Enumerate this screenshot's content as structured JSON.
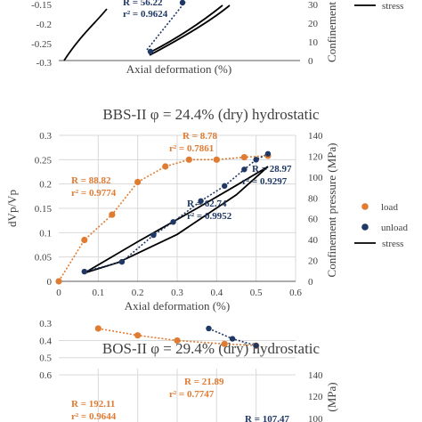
{
  "colors": {
    "load": "#E07B32",
    "unload": "#1F3864",
    "stress": "#000000",
    "axis": "#595959",
    "grid": "#D9D9D9"
  },
  "chart_data": [
    {
      "type": "scatter",
      "title": "",
      "xlabel": "Axial deformation (%)",
      "ylabel": "",
      "ylabel2": "Confinement",
      "ylim": [
        -0.3,
        -0.1
      ],
      "y_ticks": [
        "-0.15",
        "-0.2",
        "-0.25",
        "-0.3"
      ],
      "y2_ticks": [
        "30",
        "20",
        "10",
        "0"
      ],
      "series": [
        {
          "name": "unload",
          "x": [
            0.395,
            0.56
          ],
          "y": [
            -0.27,
            -0.14
          ]
        }
      ],
      "annotations": [
        {
          "text": "R = 56.22",
          "series": "unload"
        },
        {
          "text": "r² = 0.9624",
          "series": "unload"
        }
      ],
      "legend": [
        {
          "label": "stress"
        }
      ]
    },
    {
      "type": "scatter",
      "title": "BBS-II φ = 24.4% (dry) hydrostatic",
      "xlabel": "Axial deformation (%)",
      "ylabel": "dVp/Vp",
      "ylabel2": "Confinement pressure (MPa)",
      "xlim": [
        0,
        0.6
      ],
      "ylim": [
        0,
        0.3
      ],
      "y2lim": [
        0,
        140
      ],
      "x_ticks": [
        "0",
        "0.1",
        "0.2",
        "0.3",
        "0.4",
        "0.5",
        "0.6"
      ],
      "y_ticks": [
        "0",
        "0.05",
        "0.1",
        "0.15",
        "0.2",
        "0.25",
        "0.3"
      ],
      "y2_ticks": [
        "0",
        "20",
        "40",
        "60",
        "80",
        "100",
        "120",
        "140"
      ],
      "grid": true,
      "series": [
        {
          "name": "load",
          "x": [
            0,
            0.065,
            0.135,
            0.2,
            0.27,
            0.33,
            0.4,
            0.47,
            0.53
          ],
          "y": [
            0,
            0.085,
            0.137,
            0.204,
            0.236,
            0.25,
            0.25,
            0.255,
            0.258
          ]
        },
        {
          "name": "unload",
          "x": [
            0.065,
            0.16,
            0.24,
            0.29,
            0.36,
            0.42,
            0.47,
            0.5,
            0.53
          ],
          "y": [
            0.02,
            0.04,
            0.095,
            0.122,
            0.165,
            0.196,
            0.23,
            0.25,
            0.262
          ]
        }
      ],
      "stress_loop": {
        "load_x": [
          0.065,
          0.2,
          0.35,
          0.45,
          0.53
        ],
        "load_y": [
          8,
          38,
          70,
          92,
          110
        ],
        "unload_x": [
          0.53,
          0.45,
          0.3,
          0.15,
          0.065
        ],
        "unload_y": [
          110,
          83,
          45,
          18,
          8
        ]
      },
      "annotations": [
        {
          "text": "R = 8.78",
          "color": "load"
        },
        {
          "text": "r² = 0.7861",
          "color": "load"
        },
        {
          "text": "R = 88.82",
          "color": "load"
        },
        {
          "text": "r² = 0.9774",
          "color": "load"
        },
        {
          "text": "R = 28.97",
          "color": "unload"
        },
        {
          "text": "r² = 0.9297",
          "color": "unload"
        },
        {
          "text": "R = 62.74",
          "color": "unload"
        },
        {
          "text": "r² = 0.9952",
          "color": "unload"
        }
      ],
      "legend": [
        {
          "label": "load"
        },
        {
          "label": "unload"
        },
        {
          "label": "stress"
        }
      ]
    },
    {
      "type": "scatter",
      "title": "BOS-II φ = 29.4% (dry) hydrostatic",
      "xlabel": "",
      "ylabel": "",
      "ylabel2": "(MPa)",
      "ylim": [
        0.3,
        0.6
      ],
      "y2lim": [
        100,
        140
      ],
      "y_ticks": [
        "0.6",
        "0.5",
        "0.4",
        "0.3"
      ],
      "y2_ticks": [
        "140",
        "120",
        "100"
      ],
      "series": [
        {
          "name": "load",
          "x": [
            0.1,
            0.2,
            0.3,
            0.42,
            0.5
          ],
          "y": [
            0.33,
            0.37,
            0.4,
            0.42,
            0.43
          ]
        },
        {
          "name": "unload",
          "x": [
            0.38,
            0.44,
            0.5
          ],
          "y": [
            0.33,
            0.39,
            0.43
          ]
        }
      ],
      "annotations": [
        {
          "text": "R = 21.89",
          "color": "load"
        },
        {
          "text": "r² = 0.7747",
          "color": "load"
        },
        {
          "text": "R = 192.11",
          "color": "load"
        },
        {
          "text": "r² = 0.9644",
          "color": "load"
        },
        {
          "text": "R = 107.47",
          "color": "unload"
        }
      ]
    }
  ]
}
